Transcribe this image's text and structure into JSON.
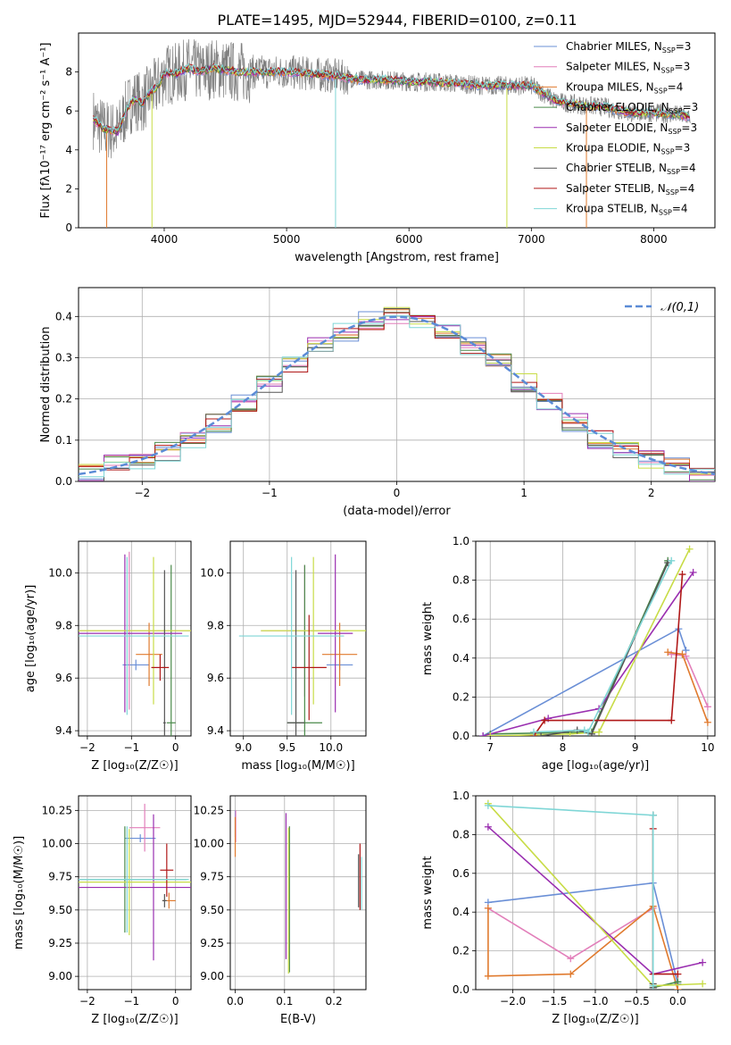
{
  "figure_title": "PLATE=1495, MJD=52944, FIBERID=0100, z=0.11",
  "colors": {
    "grid": "#b0b0b0",
    "data": "#808080",
    "normal": "#5b8bd6",
    "sub_chabrier_miles": "#6a8fd6",
    "sub_salpeter_miles": "#e27fba",
    "sub_kroupa_miles": "#e07a2e",
    "sub_chabrier_elodie": "#4a8a4a",
    "sub_salpeter_elodie": "#9a2fb0",
    "sub_kroupa_elodie": "#c8dc46",
    "sub_chabrier_stelib": "#555555",
    "sub_salpeter_stelib": "#b01818",
    "sub_kroupa_stelib": "#7fd6d6"
  },
  "chart_data": [
    {
      "id": "spectrum",
      "type": "line",
      "xlabel": "wavelength [Angstrom, rest frame]",
      "ylabel": "Flux [fλ10⁻¹⁷ erg cm⁻² s⁻¹ A⁻¹]",
      "xlim": [
        3300,
        8500
      ],
      "ylim": [
        0,
        10
      ],
      "xticks": [
        4000,
        5000,
        6000,
        7000,
        8000
      ],
      "yticks": [
        0,
        2,
        4,
        6,
        8
      ],
      "grid": false,
      "legend_position": "right",
      "model_curve": {
        "x": [
          3420,
          3500,
          3560,
          3620,
          3700,
          3760,
          3820,
          3880,
          3950,
          4000,
          4100,
          4200,
          4300,
          4400,
          4500,
          4600,
          4800,
          5000,
          5200,
          5400,
          5600,
          5800,
          6000,
          6200,
          6400,
          6600,
          6800,
          7000,
          7200,
          7400,
          7600,
          7800,
          8000,
          8200,
          8300
        ],
        "y": [
          5.6,
          5.1,
          5.0,
          4.9,
          6.2,
          6.6,
          6.4,
          6.9,
          7.3,
          7.9,
          7.9,
          8.2,
          8.0,
          8.2,
          8.1,
          8.0,
          8.0,
          8.0,
          7.9,
          7.8,
          7.6,
          7.6,
          7.5,
          7.5,
          7.4,
          7.3,
          7.3,
          7.3,
          6.5,
          6.3,
          6.2,
          5.9,
          5.9,
          5.8,
          5.7
        ]
      },
      "legend": [
        {
          "label": "Chabrier MILES, N",
          "sub": "SSP",
          "value": "=3"
        },
        {
          "label": "Salpeter MILES, N",
          "sub": "SSP",
          "value": "=3"
        },
        {
          "label": "Kroupa MILES, N",
          "sub": "SSP",
          "value": "=4"
        },
        {
          "label": "Chabrier ELODIE, N",
          "sub": "SSP",
          "value": "=3"
        },
        {
          "label": "Salpeter ELODIE, N",
          "sub": "SSP",
          "value": "=3"
        },
        {
          "label": "Kroupa ELODIE, N",
          "sub": "SSP",
          "value": "=3"
        },
        {
          "label": "Chabrier STELIB, N",
          "sub": "SSP",
          "value": "=4"
        },
        {
          "label": "Salpeter STELIB, N",
          "sub": "SSP",
          "value": "=4"
        },
        {
          "label": "Kroupa STELIB, N",
          "sub": "SSP",
          "value": "=4"
        }
      ]
    },
    {
      "id": "residuals",
      "type": "line",
      "xlabel": "(data-model)/error",
      "ylabel": "Normed distribution",
      "xlim": [
        -2.5,
        2.5
      ],
      "ylim": [
        0,
        0.47
      ],
      "xticks": [
        -2,
        -1,
        0,
        1,
        2
      ],
      "yticks": [
        0.0,
        0.1,
        0.2,
        0.3,
        0.4
      ],
      "grid": true,
      "legend_label": "𝒩(0,1)",
      "legend_position": "top-right",
      "normal_curve": {
        "mu": 0,
        "sigma": 1
      },
      "histogram_edges": [
        -2.5,
        -2.3,
        -2.1,
        -1.9,
        -1.7,
        -1.5,
        -1.3,
        -1.1,
        -0.9,
        -0.7,
        -0.5,
        -0.3,
        -0.1,
        0.1,
        0.3,
        0.5,
        0.7,
        0.9,
        1.1,
        1.3,
        1.5,
        1.7,
        1.9,
        2.1,
        2.3,
        2.5
      ],
      "histogram_base": [
        0.02,
        0.04,
        0.05,
        0.07,
        0.1,
        0.14,
        0.19,
        0.24,
        0.29,
        0.33,
        0.36,
        0.39,
        0.4,
        0.39,
        0.36,
        0.33,
        0.29,
        0.24,
        0.19,
        0.14,
        0.1,
        0.07,
        0.05,
        0.04,
        0.02
      ],
      "histogram_spread": 0.025
    },
    {
      "id": "age_vs_Z",
      "type": "scatter",
      "xlabel": "Z [log₁₀(Z/Z☉)]",
      "ylabel": "age  [log₁₀(age/yr)]",
      "xlim": [
        -2.2,
        0.35
      ],
      "ylim": [
        9.38,
        10.12
      ],
      "xticks": [
        -2,
        -1,
        0
      ],
      "yticks": [
        9.4,
        9.6,
        9.8,
        10.0
      ],
      "grid": true,
      "points": [
        {
          "x": -0.9,
          "y": 9.65,
          "xe": 0.3,
          "ye": 0.02
        },
        {
          "x": -1.05,
          "y": 9.78,
          "xe": 1.4,
          "ye": 0.3
        },
        {
          "x": -0.6,
          "y": 9.69,
          "xe": 0.3,
          "ye": 0.12
        },
        {
          "x": -0.1,
          "y": 9.43,
          "xe": 0.1,
          "ye": 0.6
        },
        {
          "x": -1.15,
          "y": 9.77,
          "xe": 1.3,
          "ye": 0.3
        },
        {
          "x": -0.5,
          "y": 9.78,
          "xe": 1.7,
          "ye": 0.28
        },
        {
          "x": -0.25,
          "y": 9.43,
          "xe": 0.03,
          "ye": 0.58
        },
        {
          "x": -0.35,
          "y": 9.64,
          "xe": 0.2,
          "ye": 0.05
        },
        {
          "x": -1.1,
          "y": 9.76,
          "xe": 1.4,
          "ye": 0.3
        }
      ]
    },
    {
      "id": "age_vs_mass",
      "type": "scatter",
      "xlabel": "mass [log₁₀(M/M☉)]",
      "ylabel": "",
      "xlim": [
        8.85,
        10.4
      ],
      "ylim": [
        9.38,
        10.12
      ],
      "xticks": [
        9.0,
        9.5,
        10.0
      ],
      "yticks": [
        9.4,
        9.6,
        9.8,
        10.0
      ],
      "grid": true,
      "points": [
        {
          "x": 10.1,
          "y": 9.65,
          "xe": 0.15,
          "ye": 0.02
        },
        {
          "x": 9.7,
          "y": 9.78,
          "xe": 0.5,
          "ye": 0.25
        },
        {
          "x": 10.1,
          "y": 9.69,
          "xe": 0.2,
          "ye": 0.12
        },
        {
          "x": 9.7,
          "y": 9.43,
          "xe": 0.2,
          "ye": 0.6
        },
        {
          "x": 10.05,
          "y": 9.77,
          "xe": 0.2,
          "ye": 0.3
        },
        {
          "x": 9.8,
          "y": 9.78,
          "xe": 0.6,
          "ye": 0.28
        },
        {
          "x": 9.6,
          "y": 9.43,
          "xe": 0.1,
          "ye": 0.58
        },
        {
          "x": 9.75,
          "y": 9.64,
          "xe": 0.2,
          "ye": 0.2
        },
        {
          "x": 9.55,
          "y": 9.76,
          "xe": 0.6,
          "ye": 0.3
        }
      ]
    },
    {
      "id": "mass_weight_vs_age",
      "type": "line",
      "xlabel": "age  [log₁₀(age/yr)]",
      "ylabel": "mass weight",
      "xlim": [
        6.8,
        10.1
      ],
      "ylim": [
        0,
        1.0
      ],
      "xticks": [
        7,
        8,
        9,
        10
      ],
      "yticks": [
        0.0,
        0.2,
        0.4,
        0.6,
        0.8,
        1.0
      ],
      "grid": true,
      "series": [
        {
          "x": [
            6.9,
            9.6,
            9.7
          ],
          "y": [
            0.0,
            0.55,
            0.44
          ]
        },
        {
          "x": [
            9.5,
            9.7,
            10.0
          ],
          "y": [
            0.42,
            0.41,
            0.15
          ]
        },
        {
          "x": [
            9.45,
            9.65,
            10.0
          ],
          "y": [
            0.43,
            0.42,
            0.07
          ]
        },
        {
          "x": [
            7.0,
            8.4,
            9.45
          ],
          "y": [
            0.01,
            0.02,
            0.9
          ]
        },
        {
          "x": [
            6.9,
            7.8,
            8.5,
            9.8
          ],
          "y": [
            0.0,
            0.09,
            0.14,
            0.84
          ]
        },
        {
          "x": [
            7.0,
            8.1,
            8.5,
            9.75
          ],
          "y": [
            0.0,
            0.01,
            0.02,
            0.96
          ]
        },
        {
          "x": [
            7.7,
            8.2,
            8.4,
            9.45
          ],
          "y": [
            0.0,
            0.03,
            0.01,
            0.89
          ]
        },
        {
          "x": [
            7.6,
            7.75,
            9.5,
            9.65
          ],
          "y": [
            0.0,
            0.08,
            0.08,
            0.83
          ]
        },
        {
          "x": [
            7.6,
            8.3,
            8.35,
            9.5
          ],
          "y": [
            0.02,
            0.03,
            0.02,
            0.9
          ]
        }
      ]
    },
    {
      "id": "mass_vs_Z",
      "type": "scatter",
      "xlabel": "Z [log₁₀(Z/Z☉)]",
      "ylabel": "mass [log₁₀(M/M☉)]",
      "xlim": [
        -2.2,
        0.35
      ],
      "ylim": [
        8.9,
        10.36
      ],
      "xticks": [
        -2,
        -1,
        0
      ],
      "yticks": [
        9.0,
        9.25,
        9.5,
        9.75,
        10.0,
        10.25
      ],
      "grid": true,
      "points": [
        {
          "x": -0.8,
          "y": 10.04,
          "xe": 0.35,
          "ye": 0.03
        },
        {
          "x": -0.7,
          "y": 10.12,
          "xe": 0.35,
          "ye": 0.18
        },
        {
          "x": -0.15,
          "y": 9.57,
          "xe": 0.15,
          "ye": 0.06
        },
        {
          "x": -1.15,
          "y": 9.73,
          "xe": 1.4,
          "ye": 0.4
        },
        {
          "x": -0.5,
          "y": 9.67,
          "xe": 1.7,
          "ye": 0.55
        },
        {
          "x": -1.05,
          "y": 9.71,
          "xe": 1.4,
          "ye": 0.4
        },
        {
          "x": -0.25,
          "y": 9.57,
          "xe": 0.05,
          "ye": 0.05
        },
        {
          "x": -0.2,
          "y": 9.8,
          "xe": 0.15,
          "ye": 0.2
        },
        {
          "x": -1.1,
          "y": 9.73,
          "xe": 1.4,
          "ye": 0.4
        }
      ]
    },
    {
      "id": "mass_vs_EBV",
      "type": "scatter",
      "xlabel": "E(B-V)",
      "ylabel": "",
      "xlim": [
        -0.01,
        0.265
      ],
      "ylim": [
        8.9,
        10.36
      ],
      "xticks": [
        0.0,
        0.1,
        0.2
      ],
      "yticks": [
        9.0,
        9.25,
        9.5,
        9.75,
        10.0,
        10.25
      ],
      "grid": true,
      "points": [
        {
          "x": 0.0,
          "y": 10.15,
          "xe": 0.0,
          "ye": 0.1
        },
        {
          "x": 0.001,
          "y": 10.13,
          "xe": 0.0,
          "ye": 0.12
        },
        {
          "x": 0.0,
          "y": 10.05,
          "xe": 0.0,
          "ye": 0.15
        },
        {
          "x": 0.11,
          "y": 9.58,
          "xe": 0.0,
          "ye": 0.55
        },
        {
          "x": 0.103,
          "y": 9.68,
          "xe": 0.0,
          "ye": 0.55
        },
        {
          "x": 0.108,
          "y": 9.57,
          "xe": 0.0,
          "ye": 0.55
        },
        {
          "x": 0.25,
          "y": 9.72,
          "xe": 0.0,
          "ye": 0.2
        },
        {
          "x": 0.253,
          "y": 9.75,
          "xe": 0.0,
          "ye": 0.25
        },
        {
          "x": 0.256,
          "y": 9.7,
          "xe": 0.0,
          "ye": 0.2
        }
      ]
    },
    {
      "id": "mass_weight_vs_Z",
      "type": "line",
      "xlabel": "Z [log₁₀(Z/Z☉)]",
      "ylabel": "mass weight",
      "xlim": [
        -2.45,
        0.45
      ],
      "ylim": [
        0,
        1.0
      ],
      "xticks": [
        -2.0,
        -1.5,
        -1.0,
        -0.5,
        0.0
      ],
      "yticks": [
        0.0,
        0.2,
        0.4,
        0.6,
        0.8,
        1.0
      ],
      "grid": true,
      "series": [
        {
          "x": [
            -2.3,
            -0.3,
            0.0
          ],
          "y": [
            0.45,
            0.55,
            0.03
          ]
        },
        {
          "x": [
            -2.3,
            -1.3,
            -0.3
          ],
          "y": [
            0.42,
            0.16,
            0.42
          ]
        },
        {
          "x": [
            -2.3,
            -2.3,
            -1.3,
            -0.3,
            0.0
          ],
          "y": [
            0.42,
            0.07,
            0.08,
            0.43,
            0.0
          ]
        },
        {
          "x": [
            -0.3,
            -0.3,
            0.0
          ],
          "y": [
            0.9,
            0.01,
            0.04
          ]
        },
        {
          "x": [
            -2.3,
            -0.3,
            0.3
          ],
          "y": [
            0.84,
            0.08,
            0.14
          ]
        },
        {
          "x": [
            -2.3,
            -0.3,
            0.3
          ],
          "y": [
            0.96,
            0.02,
            0.03
          ]
        },
        {
          "x": [
            -0.3,
            -0.3,
            -0.3
          ],
          "y": [
            0.9,
            0.03,
            0.01
          ]
        },
        {
          "x": [
            -0.3,
            -0.3,
            0.0
          ],
          "y": [
            0.83,
            0.08,
            0.08
          ]
        },
        {
          "x": [
            -2.3,
            -0.3,
            -0.3
          ],
          "y": [
            0.95,
            0.9,
            0.02
          ]
        }
      ]
    }
  ]
}
